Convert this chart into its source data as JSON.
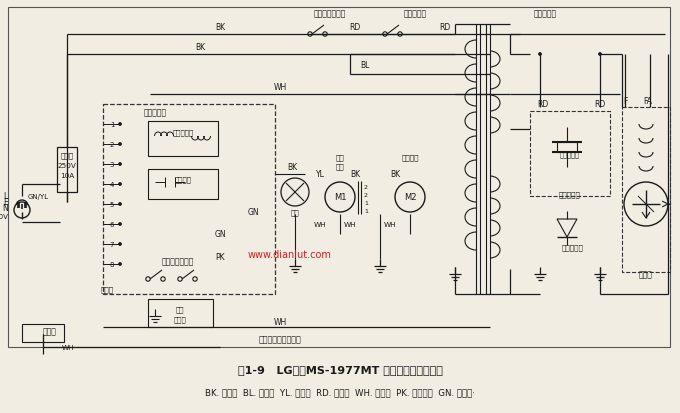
{
  "title": "图1-9   LG电子MS-1977MT 电脑式微波炉电路图",
  "subtitle": "BK. 黑色线  BL. 蓝色线  YL. 黄色线  RD. 红色线  WH. 白色线  PK. 粉红色线  GN. 绿色线·",
  "watermark": "www.dianlut.com",
  "bg_color": "#f2ede2",
  "line_color": "#1a1a1a",
  "fig_width": 6.8,
  "fig_height": 4.14,
  "dpi": 100
}
